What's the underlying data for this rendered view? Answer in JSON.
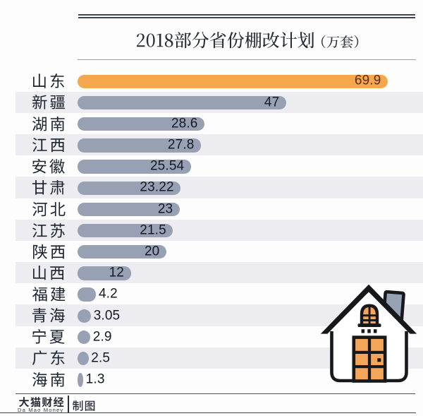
{
  "header": {
    "title": "2018部分省份棚改计划",
    "unit": "（万套）"
  },
  "chart_data": {
    "type": "bar",
    "orientation": "horizontal",
    "title": "2018部分省份棚改计划（万套）",
    "categories": [
      "山东",
      "新疆",
      "湖南",
      "江西",
      "安徽",
      "甘肃",
      "河北",
      "江苏",
      "陕西",
      "山西",
      "福建",
      "青海",
      "宁夏",
      "广东",
      "海南"
    ],
    "values": [
      69.9,
      47,
      28.6,
      27.8,
      25.54,
      23.22,
      23,
      21.5,
      20,
      12,
      4.2,
      3.05,
      2.9,
      2.5,
      1.3
    ],
    "xlim": [
      0,
      77.8
    ],
    "unit": "万套",
    "highlight_index": 0,
    "highlight_color": "#f5a74e",
    "bar_color": "#98a1b4",
    "value_label_inside_color": "#5a2d18",
    "value_label_color": "#131a25",
    "grid": "off",
    "legend": "none",
    "zebra_stripe_color": "#ededf1"
  },
  "footer": {
    "brand_cn": "大猫财经",
    "brand_en": "Da Mao Money",
    "credit": "制图"
  }
}
